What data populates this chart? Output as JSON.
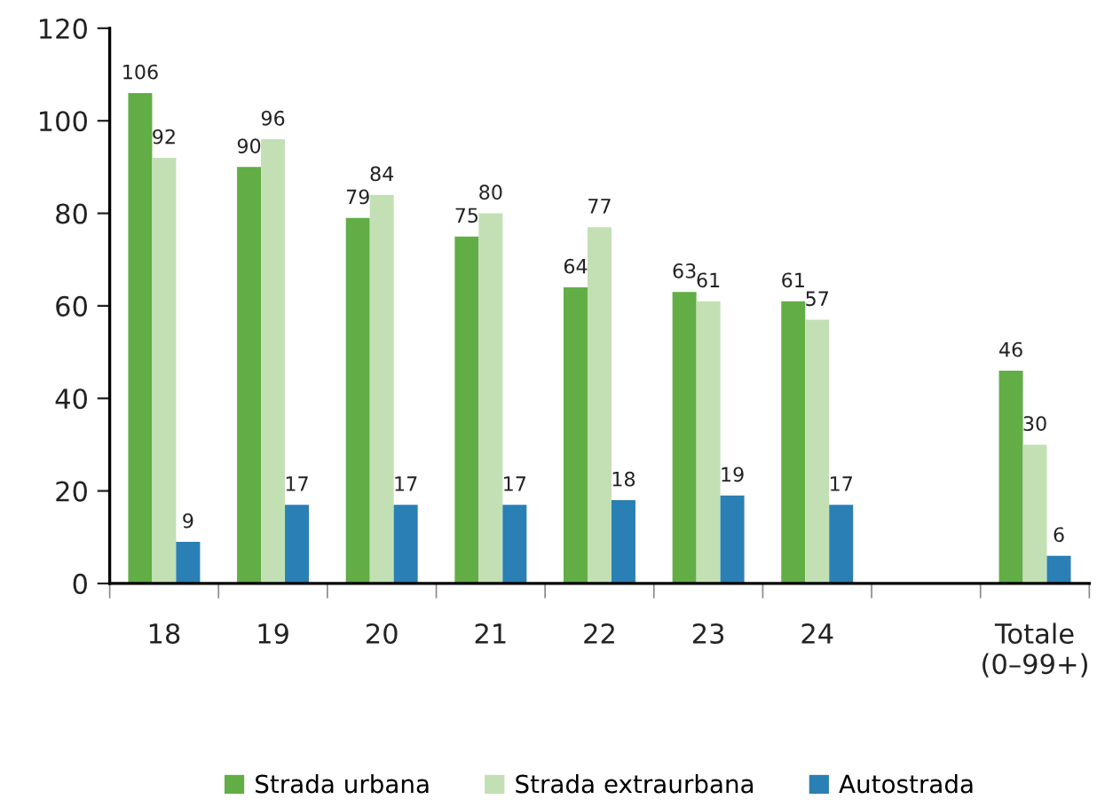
{
  "chart_data": {
    "type": "bar",
    "categories": [
      "18",
      "19",
      "20",
      "21",
      "22",
      "23",
      "24",
      null,
      "Totale\n(0–99+)"
    ],
    "series": [
      {
        "name": "Strada urbana",
        "color": "#62ad45",
        "values": [
          106,
          90,
          79,
          75,
          64,
          63,
          61,
          null,
          46
        ]
      },
      {
        "name": "Strada extraurbana",
        "color": "#c2e0b4",
        "values": [
          92,
          96,
          84,
          80,
          77,
          61,
          57,
          null,
          30
        ]
      },
      {
        "name": "Autostrada",
        "color": "#2a7fb4",
        "values": [
          9,
          17,
          17,
          17,
          18,
          19,
          17,
          null,
          6
        ]
      }
    ],
    "ylim": [
      0,
      120
    ],
    "yticks": [
      0,
      20,
      40,
      60,
      80,
      100,
      120
    ],
    "data_labels": true,
    "legend": "bottom",
    "grid": false
  }
}
